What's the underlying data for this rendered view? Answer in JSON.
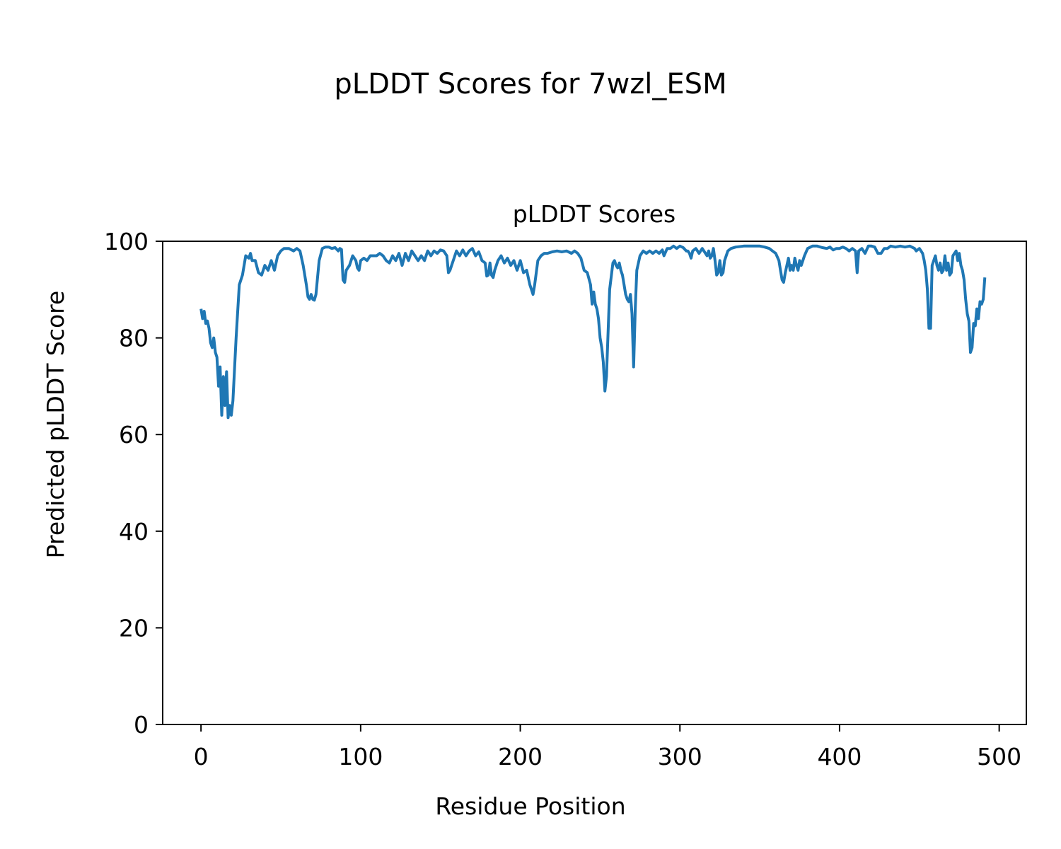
{
  "chart_data": {
    "type": "line",
    "suptitle": "pLDDT Scores for 7wzl_ESM",
    "title": "pLDDT Scores",
    "xlabel": "Residue Position",
    "ylabel": "Predicted pLDDT Score",
    "xlim": [
      -24,
      517
    ],
    "ylim": [
      0,
      100
    ],
    "xticks": [
      0,
      100,
      200,
      300,
      400,
      500
    ],
    "yticks": [
      0,
      20,
      40,
      60,
      80,
      100
    ],
    "grid": false,
    "legend": "none",
    "series_color": "#1f77b4",
    "series": [
      {
        "points": [
          [
            0,
            86
          ],
          [
            1,
            84
          ],
          [
            2,
            85.5
          ],
          [
            3,
            83
          ],
          [
            4,
            83.5
          ],
          [
            5,
            82
          ],
          [
            6,
            79
          ],
          [
            7,
            78
          ],
          [
            8,
            80
          ],
          [
            9,
            77
          ],
          [
            10,
            76
          ],
          [
            11,
            70
          ],
          [
            12,
            74
          ],
          [
            13,
            64
          ],
          [
            14,
            72
          ],
          [
            15,
            66
          ],
          [
            16,
            73
          ],
          [
            17,
            63.5
          ],
          [
            18,
            66
          ],
          [
            19,
            64
          ],
          [
            20,
            67
          ],
          [
            22,
            80
          ],
          [
            24,
            91
          ],
          [
            26,
            93
          ],
          [
            28,
            97
          ],
          [
            30,
            96.5
          ],
          [
            31,
            97.5
          ],
          [
            32,
            96
          ],
          [
            34,
            96
          ],
          [
            36,
            93.5
          ],
          [
            38,
            93
          ],
          [
            40,
            95
          ],
          [
            42,
            94
          ],
          [
            44,
            96
          ],
          [
            46,
            94
          ],
          [
            48,
            97
          ],
          [
            50,
            98
          ],
          [
            52,
            98.5
          ],
          [
            55,
            98.5
          ],
          [
            58,
            98
          ],
          [
            60,
            98.5
          ],
          [
            62,
            98
          ],
          [
            64,
            95
          ],
          [
            66,
            91
          ],
          [
            67,
            88.5
          ],
          [
            68,
            88
          ],
          [
            69,
            89
          ],
          [
            70,
            88
          ],
          [
            71,
            87.8
          ],
          [
            72,
            89
          ],
          [
            74,
            96
          ],
          [
            76,
            98.5
          ],
          [
            78,
            98.8
          ],
          [
            80,
            98.8
          ],
          [
            82,
            98.5
          ],
          [
            84,
            98.7
          ],
          [
            86,
            98
          ],
          [
            87,
            98.5
          ],
          [
            88,
            98.3
          ],
          [
            89,
            92
          ],
          [
            90,
            91.5
          ],
          [
            91,
            94
          ],
          [
            93,
            95
          ],
          [
            95,
            97
          ],
          [
            97,
            96
          ],
          [
            98,
            94.5
          ],
          [
            99,
            94
          ],
          [
            100,
            96
          ],
          [
            102,
            96.5
          ],
          [
            104,
            96
          ],
          [
            106,
            97
          ],
          [
            108,
            97
          ],
          [
            110,
            97
          ],
          [
            112,
            97.5
          ],
          [
            114,
            97
          ],
          [
            116,
            96
          ],
          [
            118,
            95.5
          ],
          [
            120,
            97
          ],
          [
            122,
            96
          ],
          [
            124,
            97.5
          ],
          [
            126,
            95
          ],
          [
            128,
            97.5
          ],
          [
            130,
            96
          ],
          [
            132,
            98
          ],
          [
            134,
            97
          ],
          [
            136,
            96
          ],
          [
            138,
            97
          ],
          [
            140,
            96
          ],
          [
            142,
            98
          ],
          [
            144,
            97
          ],
          [
            146,
            98
          ],
          [
            148,
            97.5
          ],
          [
            150,
            98.2
          ],
          [
            152,
            98
          ],
          [
            154,
            97
          ],
          [
            155,
            93.5
          ],
          [
            156,
            94
          ],
          [
            158,
            96
          ],
          [
            160,
            98
          ],
          [
            162,
            97
          ],
          [
            164,
            98.2
          ],
          [
            166,
            97
          ],
          [
            168,
            98
          ],
          [
            170,
            98.5
          ],
          [
            172,
            97
          ],
          [
            174,
            97.8
          ],
          [
            176,
            96
          ],
          [
            178,
            95.5
          ],
          [
            179,
            92.8
          ],
          [
            180,
            93
          ],
          [
            181,
            95.5
          ],
          [
            182,
            93
          ],
          [
            183,
            92.5
          ],
          [
            184,
            94
          ],
          [
            186,
            96
          ],
          [
            188,
            97
          ],
          [
            190,
            95.5
          ],
          [
            192,
            96.5
          ],
          [
            194,
            95
          ],
          [
            196,
            96
          ],
          [
            198,
            94
          ],
          [
            200,
            96
          ],
          [
            202,
            93.5
          ],
          [
            204,
            94
          ],
          [
            206,
            91
          ],
          [
            207,
            90
          ],
          [
            208,
            89
          ],
          [
            209,
            91
          ],
          [
            211,
            96
          ],
          [
            213,
            97
          ],
          [
            215,
            97.5
          ],
          [
            217,
            97.5
          ],
          [
            220,
            97.8
          ],
          [
            223,
            98
          ],
          [
            226,
            97.8
          ],
          [
            229,
            98
          ],
          [
            232,
            97.5
          ],
          [
            234,
            98
          ],
          [
            236,
            97.5
          ],
          [
            238,
            96.5
          ],
          [
            240,
            94
          ],
          [
            242,
            93.5
          ],
          [
            244,
            91
          ],
          [
            245,
            87
          ],
          [
            246,
            89.5
          ],
          [
            247,
            87
          ],
          [
            248,
            86
          ],
          [
            249,
            84
          ],
          [
            250,
            80
          ],
          [
            251,
            78
          ],
          [
            252,
            75
          ],
          [
            253,
            69
          ],
          [
            254,
            72
          ],
          [
            256,
            90
          ],
          [
            258,
            95.5
          ],
          [
            259,
            96
          ],
          [
            260,
            95
          ],
          [
            261,
            94.5
          ],
          [
            262,
            95.5
          ],
          [
            263,
            94
          ],
          [
            264,
            93
          ],
          [
            265,
            91
          ],
          [
            266,
            89
          ],
          [
            267,
            88
          ],
          [
            268,
            87.5
          ],
          [
            269,
            89
          ],
          [
            270,
            85
          ],
          [
            271,
            74
          ],
          [
            272,
            86
          ],
          [
            273,
            94
          ],
          [
            275,
            97
          ],
          [
            277,
            98
          ],
          [
            279,
            97.5
          ],
          [
            281,
            98
          ],
          [
            283,
            97.5
          ],
          [
            285,
            98
          ],
          [
            287,
            97.5
          ],
          [
            289,
            98.2
          ],
          [
            290,
            97
          ],
          [
            292,
            98.5
          ],
          [
            294,
            98.5
          ],
          [
            296,
            99
          ],
          [
            298,
            98.5
          ],
          [
            300,
            99
          ],
          [
            302,
            98.7
          ],
          [
            304,
            98
          ],
          [
            305,
            98
          ],
          [
            306,
            97.5
          ],
          [
            307,
            96.5
          ],
          [
            308,
            98
          ],
          [
            310,
            98.5
          ],
          [
            312,
            97.5
          ],
          [
            314,
            98.5
          ],
          [
            316,
            97.5
          ],
          [
            317,
            97
          ],
          [
            318,
            98
          ],
          [
            319,
            96.5
          ],
          [
            320,
            97
          ],
          [
            321,
            98.5
          ],
          [
            322,
            96
          ],
          [
            323,
            93
          ],
          [
            324,
            93.5
          ],
          [
            325,
            96
          ],
          [
            326,
            93
          ],
          [
            327,
            93.5
          ],
          [
            328,
            96
          ],
          [
            330,
            98
          ],
          [
            332,
            98.5
          ],
          [
            335,
            98.8
          ],
          [
            340,
            99
          ],
          [
            345,
            99
          ],
          [
            350,
            99
          ],
          [
            353,
            98.8
          ],
          [
            356,
            98.5
          ],
          [
            358,
            98
          ],
          [
            360,
            97.5
          ],
          [
            362,
            96
          ],
          [
            363,
            94
          ],
          [
            364,
            92
          ],
          [
            365,
            91.5
          ],
          [
            366,
            93.5
          ],
          [
            368,
            96.5
          ],
          [
            369,
            94
          ],
          [
            370,
            95
          ],
          [
            371,
            94
          ],
          [
            372,
            96.5
          ],
          [
            373,
            95
          ],
          [
            374,
            94
          ],
          [
            375,
            96
          ],
          [
            376,
            95
          ],
          [
            378,
            97
          ],
          [
            380,
            98.5
          ],
          [
            383,
            99
          ],
          [
            386,
            99
          ],
          [
            389,
            98.7
          ],
          [
            392,
            98.5
          ],
          [
            394,
            98.8
          ],
          [
            396,
            98.2
          ],
          [
            398,
            98.5
          ],
          [
            400,
            98.5
          ],
          [
            402,
            98.8
          ],
          [
            404,
            98.5
          ],
          [
            406,
            98
          ],
          [
            408,
            98.5
          ],
          [
            410,
            98
          ],
          [
            411,
            93.5
          ],
          [
            412,
            98
          ],
          [
            414,
            98.5
          ],
          [
            416,
            97.5
          ],
          [
            418,
            99
          ],
          [
            420,
            99
          ],
          [
            422,
            98.8
          ],
          [
            424,
            97.5
          ],
          [
            426,
            97.5
          ],
          [
            428,
            98.5
          ],
          [
            430,
            98.5
          ],
          [
            432,
            99
          ],
          [
            435,
            98.8
          ],
          [
            438,
            99
          ],
          [
            441,
            98.8
          ],
          [
            444,
            99
          ],
          [
            447,
            98.5
          ],
          [
            448,
            98
          ],
          [
            450,
            98.5
          ],
          [
            452,
            97.5
          ],
          [
            453,
            96
          ],
          [
            454,
            94
          ],
          [
            455,
            90
          ],
          [
            456,
            82
          ],
          [
            457,
            82
          ],
          [
            458,
            95
          ],
          [
            460,
            97
          ],
          [
            461,
            95
          ],
          [
            462,
            94
          ],
          [
            463,
            95.5
          ],
          [
            464,
            93.5
          ],
          [
            465,
            94
          ],
          [
            466,
            97
          ],
          [
            467,
            94
          ],
          [
            468,
            95.5
          ],
          [
            469,
            93
          ],
          [
            470,
            93.5
          ],
          [
            471,
            97
          ],
          [
            472,
            97.5
          ],
          [
            473,
            98
          ],
          [
            474,
            96
          ],
          [
            475,
            97.5
          ],
          [
            476,
            95
          ],
          [
            477,
            94
          ],
          [
            478,
            92
          ],
          [
            479,
            88
          ],
          [
            480,
            85
          ],
          [
            481,
            83.5
          ],
          [
            482,
            77
          ],
          [
            483,
            78
          ],
          [
            484,
            83
          ],
          [
            485,
            82.5
          ],
          [
            486,
            86
          ],
          [
            487,
            84
          ],
          [
            488,
            87.5
          ],
          [
            489,
            87
          ],
          [
            490,
            88
          ],
          [
            491,
            92.5
          ]
        ]
      }
    ]
  }
}
